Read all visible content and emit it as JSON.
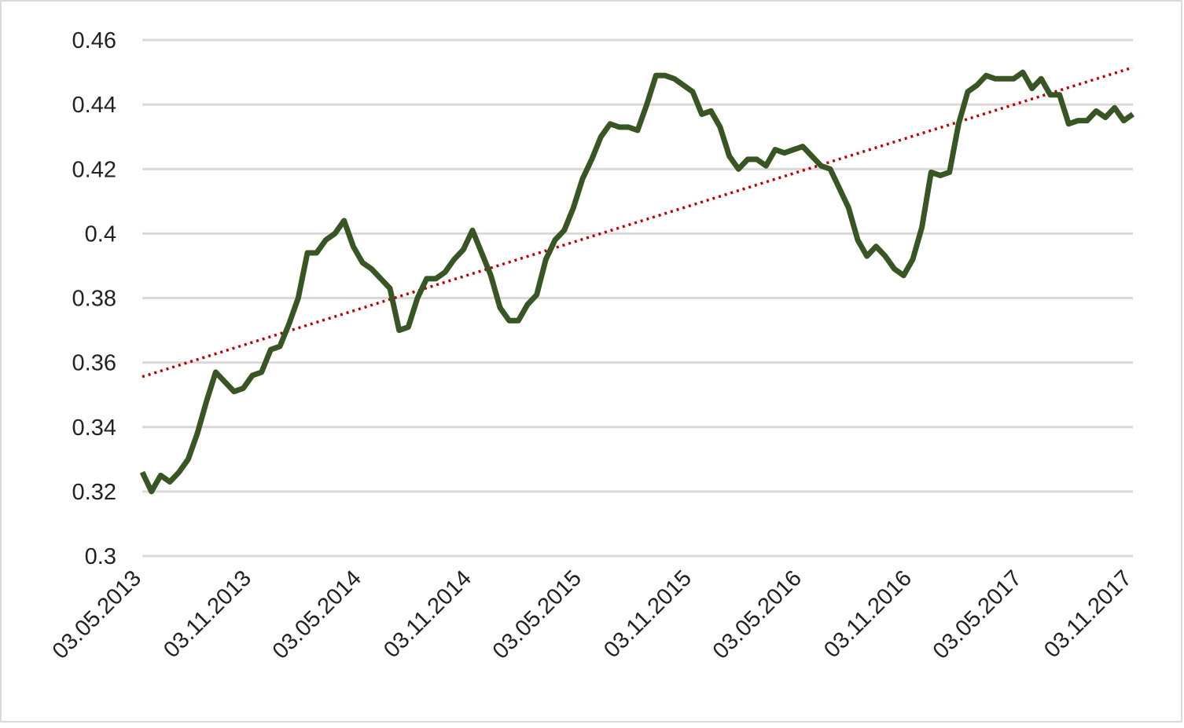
{
  "chart_data": {
    "type": "line",
    "categories": [
      "03.05.2013",
      null,
      null,
      null,
      null,
      null,
      null,
      null,
      null,
      null,
      null,
      null,
      "03.11.2013",
      null,
      null,
      null,
      null,
      null,
      null,
      null,
      null,
      null,
      null,
      null,
      "03.05.2014",
      null,
      null,
      null,
      null,
      null,
      null,
      null,
      null,
      null,
      null,
      null,
      "03.11.2014",
      null,
      null,
      null,
      null,
      null,
      null,
      null,
      null,
      null,
      null,
      null,
      "03.05.2015",
      null,
      null,
      null,
      null,
      null,
      null,
      null,
      null,
      null,
      null,
      null,
      "03.11.2015",
      null,
      null,
      null,
      null,
      null,
      null,
      null,
      null,
      null,
      null,
      null,
      "03.05.2016",
      null,
      null,
      null,
      null,
      null,
      null,
      null,
      null,
      null,
      null,
      null,
      "03.11.2016",
      null,
      null,
      null,
      null,
      null,
      null,
      null,
      null,
      null,
      null,
      null,
      "03.05.2017",
      null,
      null,
      null,
      null,
      null,
      null,
      null,
      null,
      null,
      null,
      null,
      "03.11.2017"
    ],
    "series": [
      {
        "color": "#375623",
        "values": [
          0.326,
          0.32,
          0.325,
          0.323,
          0.326,
          0.33,
          0.338,
          0.348,
          0.357,
          0.354,
          0.351,
          0.352,
          0.356,
          0.357,
          0.364,
          0.365,
          0.372,
          0.38,
          0.394,
          0.394,
          0.398,
          0.4,
          0.404,
          0.396,
          0.391,
          0.389,
          0.386,
          0.383,
          0.37,
          0.371,
          0.38,
          0.386,
          0.386,
          0.388,
          0.392,
          0.395,
          0.401,
          0.394,
          0.387,
          0.377,
          0.373,
          0.373,
          0.378,
          0.381,
          0.392,
          0.398,
          0.401,
          0.408,
          0.417,
          0.423,
          0.43,
          0.434,
          0.433,
          0.433,
          0.432,
          0.44,
          0.449,
          0.449,
          0.448,
          0.446,
          0.444,
          0.437,
          0.438,
          0.433,
          0.424,
          0.42,
          0.423,
          0.423,
          0.421,
          0.426,
          0.425,
          0.426,
          0.427,
          0.424,
          0.421,
          0.42,
          0.414,
          0.408,
          0.398,
          0.393,
          0.396,
          0.393,
          0.389,
          0.387,
          0.392,
          0.402,
          0.419,
          0.418,
          0.419,
          0.434,
          0.444,
          0.446,
          0.449,
          0.448,
          0.448,
          0.448,
          0.45,
          0.445,
          0.448,
          0.443,
          0.443,
          0.434,
          0.435,
          0.435,
          0.438,
          0.436,
          0.439,
          0.435,
          0.437
        ]
      }
    ],
    "trendline": {
      "start": 0.3556,
      "end": 0.4515,
      "color": "#c00000"
    },
    "ylim": [
      0.3,
      0.46
    ],
    "yticks": [
      0.3,
      0.32,
      0.34,
      0.36,
      0.38,
      0.4,
      0.42,
      0.44,
      0.46
    ],
    "grid": true
  }
}
